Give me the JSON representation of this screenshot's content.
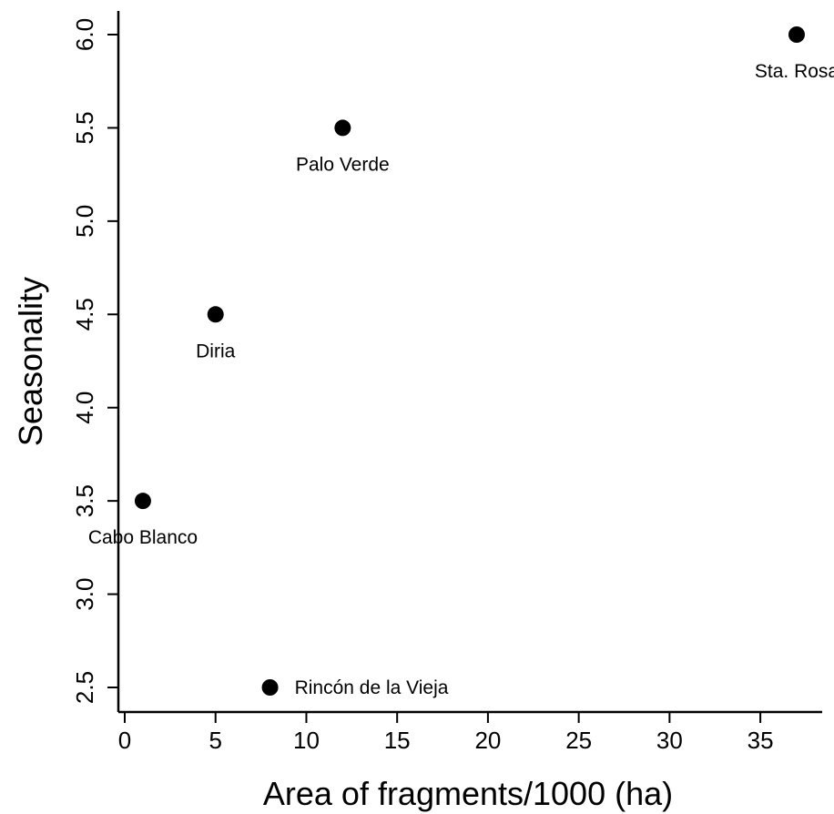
{
  "chart_data": {
    "type": "scatter",
    "title": "",
    "xlabel": "Area of fragments/1000 (ha)",
    "ylabel": "Seasonality",
    "xlim": [
      -0.6,
      38.4
    ],
    "ylim": [
      2.36,
      6.13
    ],
    "xticks": [
      0,
      5,
      10,
      15,
      20,
      25,
      30,
      35
    ],
    "yticks": [
      2.5,
      3.0,
      3.5,
      4.0,
      4.5,
      5.0,
      5.5,
      6.0
    ],
    "ytick_labels": [
      "2.5",
      "3.0",
      "3.5",
      "4.0",
      "4.5",
      "5.0",
      "5.5",
      "6.0"
    ],
    "grid": false,
    "points": [
      {
        "label": "Sta. Rosa",
        "x": 37,
        "y": 6.0,
        "label_pos": "below"
      },
      {
        "label": "Palo Verde",
        "x": 12,
        "y": 5.5,
        "label_pos": "below"
      },
      {
        "label": "Diria",
        "x": 5,
        "y": 4.5,
        "label_pos": "below"
      },
      {
        "label": "Cabo Blanco",
        "x": 1,
        "y": 3.5,
        "label_pos": "below"
      },
      {
        "label": "Rincón de la Vieja",
        "x": 8,
        "y": 2.5,
        "label_pos": "right"
      }
    ]
  }
}
